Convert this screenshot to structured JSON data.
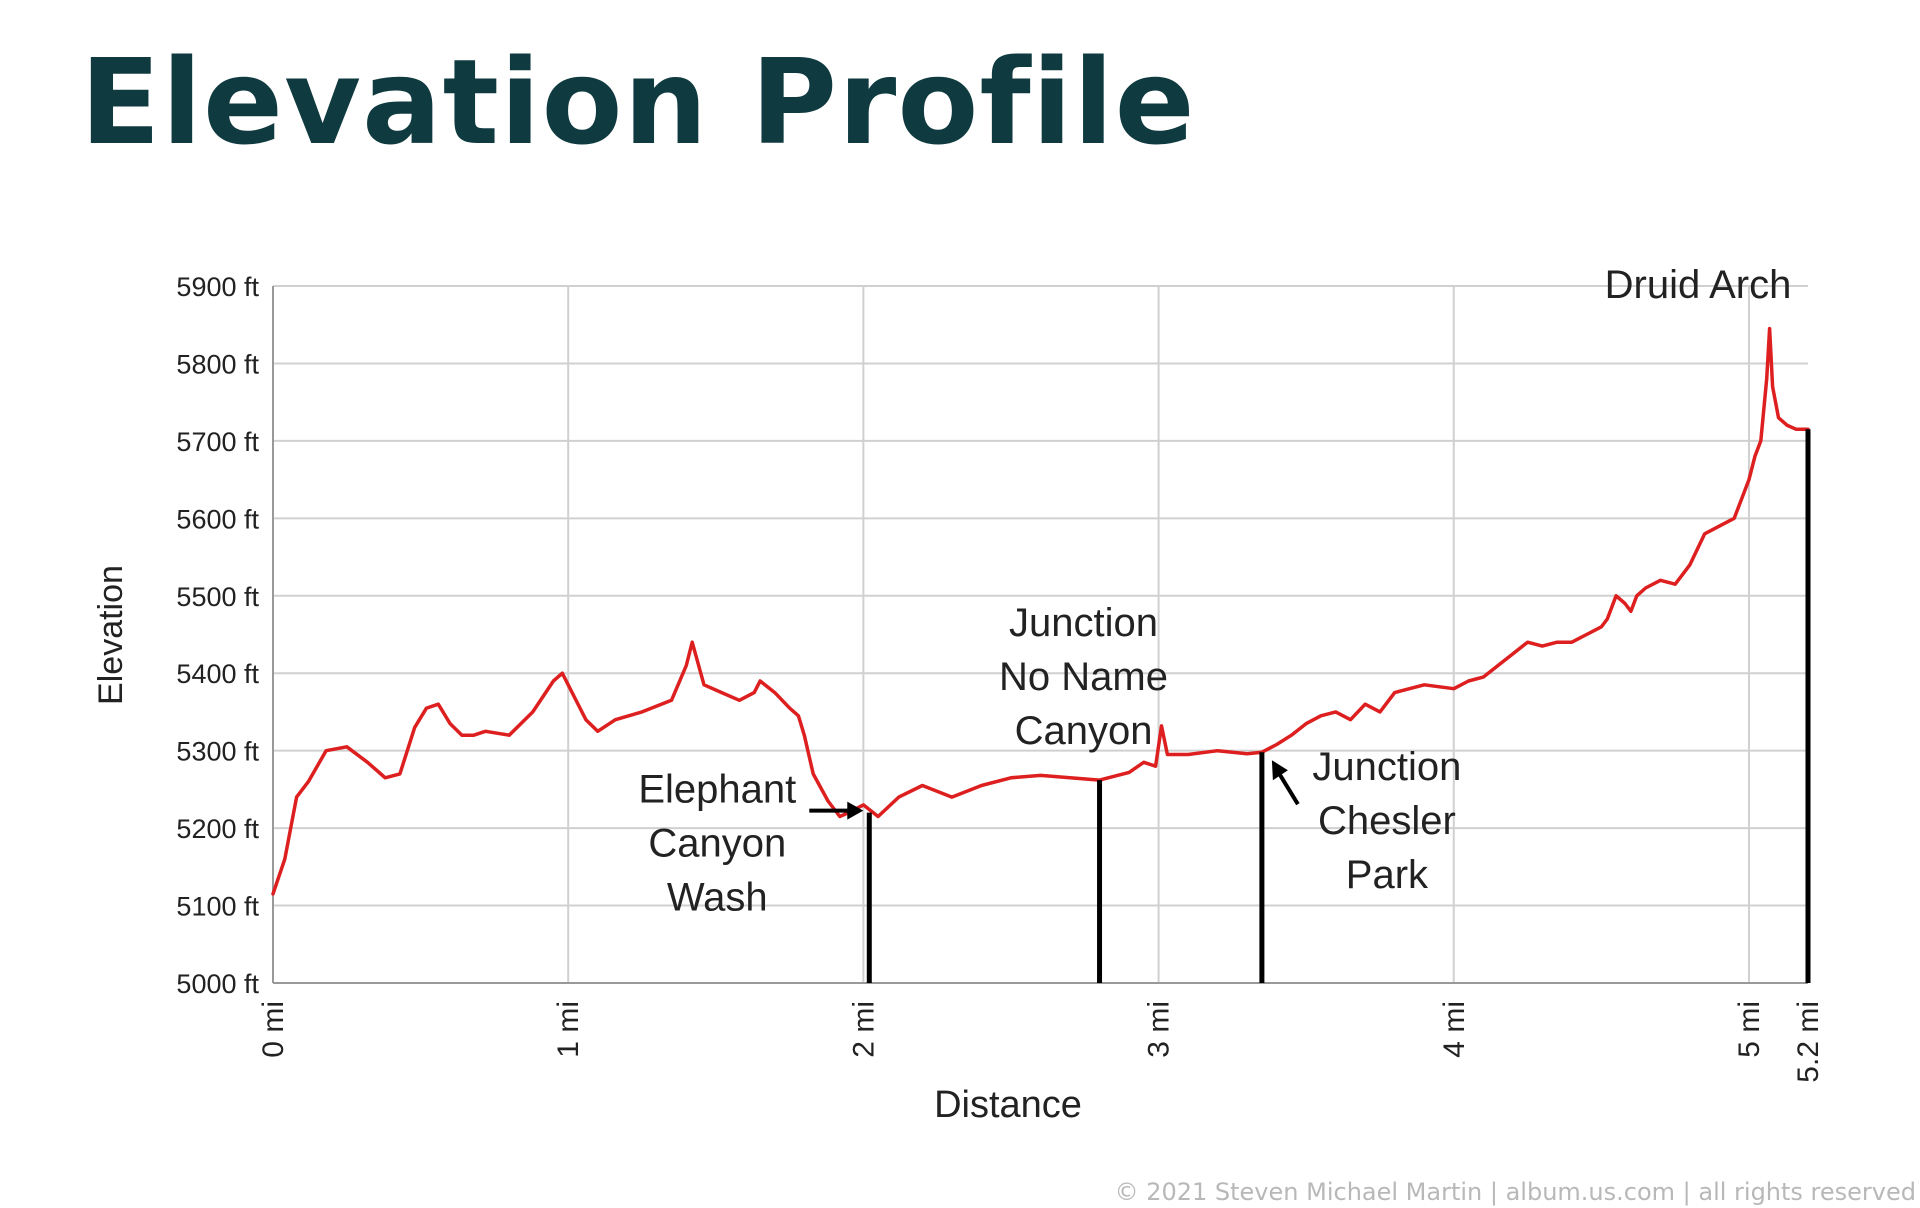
{
  "page": {
    "title": "Elevation Profile",
    "copyright": "© 2021 Steven Michael Martin | album.us.com | all rights reserved"
  },
  "colors": {
    "title": "#0f3a3f",
    "line": "#dd1f1f",
    "grid": "#d0d0d0",
    "axis": "#999999",
    "text": "#222222",
    "marker": "#000000"
  },
  "chart_data": {
    "type": "line",
    "title": "",
    "xlabel": "Distance",
    "ylabel": "Elevation",
    "xlim": [
      0,
      5.2
    ],
    "ylim": [
      5000,
      5900
    ],
    "grid": true,
    "legend": "none",
    "x_ticks": [
      {
        "value": 0,
        "label": "0 mi"
      },
      {
        "value": 1,
        "label": "1 mi"
      },
      {
        "value": 2,
        "label": "2 mi"
      },
      {
        "value": 3,
        "label": "3 mi"
      },
      {
        "value": 4,
        "label": "4 mi"
      },
      {
        "value": 5,
        "label": "5 mi"
      },
      {
        "value": 5.2,
        "label": "5.2 mi"
      }
    ],
    "y_ticks": [
      {
        "value": 5000,
        "label": "5000 ft"
      },
      {
        "value": 5100,
        "label": "5100 ft"
      },
      {
        "value": 5200,
        "label": "5200 ft"
      },
      {
        "value": 5300,
        "label": "5300 ft"
      },
      {
        "value": 5400,
        "label": "5400 ft"
      },
      {
        "value": 5500,
        "label": "5500 ft"
      },
      {
        "value": 5600,
        "label": "5600 ft"
      },
      {
        "value": 5700,
        "label": "5700 ft"
      },
      {
        "value": 5800,
        "label": "5800 ft"
      },
      {
        "value": 5900,
        "label": "5900 ft"
      }
    ],
    "series": [
      {
        "x": [
          0,
          0.04,
          0.08,
          0.12,
          0.18,
          0.25,
          0.32,
          0.38,
          0.43,
          0.48,
          0.52,
          0.56,
          0.6,
          0.64,
          0.68,
          0.72,
          0.8,
          0.88,
          0.95,
          0.98,
          1.02,
          1.06,
          1.1,
          1.16,
          1.25,
          1.35,
          1.4,
          1.42,
          1.46,
          1.52,
          1.58,
          1.63,
          1.65,
          1.7,
          1.75,
          1.78,
          1.8,
          1.83,
          1.88,
          1.92,
          1.95,
          2.0,
          2.05,
          2.12,
          2.2,
          2.3,
          2.4,
          2.5,
          2.6,
          2.7,
          2.8,
          2.9,
          2.95,
          2.99,
          3.01,
          3.03,
          3.1,
          3.2,
          3.3,
          3.35,
          3.4,
          3.45,
          3.5,
          3.55,
          3.6,
          3.65,
          3.7,
          3.75,
          3.8,
          3.9,
          4.0,
          4.05,
          4.1,
          4.15,
          4.2,
          4.25,
          4.3,
          4.35,
          4.4,
          4.45,
          4.5,
          4.52,
          4.55,
          4.58,
          4.6,
          4.62,
          4.65,
          4.7,
          4.75,
          4.8,
          4.85,
          4.9,
          4.95,
          5.0,
          5.02,
          5.04,
          5.06,
          5.07,
          5.08,
          5.1,
          5.13,
          5.16,
          5.2
        ],
        "values": [
          5115,
          5160,
          5240,
          5260,
          5300,
          5305,
          5285,
          5265,
          5270,
          5330,
          5355,
          5360,
          5335,
          5320,
          5320,
          5325,
          5320,
          5350,
          5390,
          5400,
          5370,
          5340,
          5325,
          5340,
          5350,
          5365,
          5410,
          5440,
          5385,
          5375,
          5365,
          5375,
          5390,
          5375,
          5355,
          5345,
          5320,
          5270,
          5235,
          5215,
          5220,
          5230,
          5215,
          5240,
          5255,
          5240,
          5255,
          5265,
          5268,
          5265,
          5262,
          5272,
          5285,
          5280,
          5332,
          5295,
          5295,
          5300,
          5296,
          5298,
          5308,
          5320,
          5335,
          5345,
          5350,
          5340,
          5360,
          5350,
          5375,
          5385,
          5380,
          5390,
          5395,
          5410,
          5425,
          5440,
          5435,
          5440,
          5440,
          5450,
          5460,
          5470,
          5500,
          5490,
          5480,
          5500,
          5510,
          5520,
          5515,
          5540,
          5580,
          5590,
          5600,
          5650,
          5680,
          5700,
          5780,
          5845,
          5770,
          5730,
          5720,
          5715,
          5715
        ]
      }
    ],
    "annotations": [
      {
        "x": 2.02,
        "to_value": 5220,
        "lines": [
          "Elephant",
          "Canyon",
          "Wash"
        ],
        "label_align": "left",
        "arrow": true
      },
      {
        "x": 2.8,
        "to_value": 5262,
        "lines": [
          "Junction",
          "No Name",
          "Canyon"
        ],
        "label_align": "above",
        "arrow": false
      },
      {
        "x": 3.35,
        "to_value": 5298,
        "lines": [
          "Junction",
          "Chesler",
          "Park"
        ],
        "label_align": "right",
        "arrow": true
      },
      {
        "x": 5.2,
        "to_value": 5715,
        "lines": [
          "Druid Arch"
        ],
        "label_align": "above",
        "arrow": false
      }
    ]
  }
}
